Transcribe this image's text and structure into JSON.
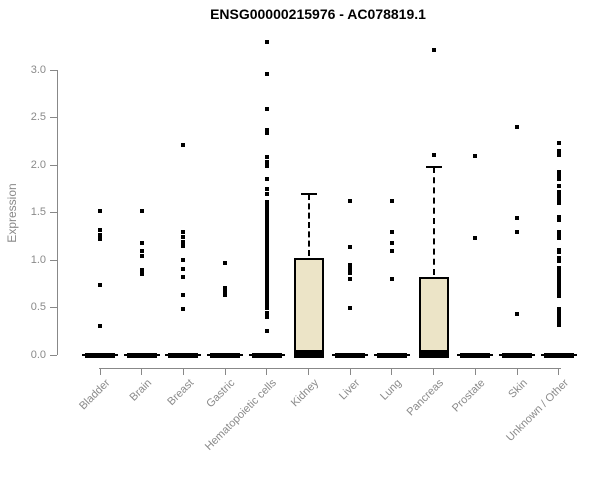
{
  "page": {
    "title": "ENSG00000215976 - AC078819.1"
  },
  "chart_data": {
    "type": "boxplot",
    "title": "ENSG00000215976 - AC078819.1",
    "xlabel": "",
    "ylabel": "Expression",
    "axis_range": [
      0.0,
      3.0
    ],
    "ytick_step": 0.5,
    "yticks": [
      "0.0",
      "0.5",
      "1.0",
      "1.5",
      "2.0",
      "2.5",
      "3.0"
    ],
    "ytick_values": [
      0.0,
      0.5,
      1.0,
      1.5,
      2.0,
      2.5,
      3.0
    ],
    "grid": false,
    "legend": "none",
    "colors": {
      "box_fill": "#ece4c7",
      "box_border": "#000000",
      "point": "#000000",
      "axis": "#888888",
      "tick_label": "#8a8a8a",
      "title": "#000000",
      "background": "#ffffff"
    },
    "categories": [
      "Bladder",
      "Brain",
      "Breast",
      "Gastric",
      "Hematopoietic cells",
      "Kidney",
      "Liver",
      "Lung",
      "Pancreas",
      "Prostate",
      "Skin",
      "Unknown / Other"
    ],
    "series": [
      {
        "name": "Bladder",
        "box": {
          "q1": 0,
          "median": 0,
          "q3": 0,
          "whisker_low": 0,
          "whisker_high": 0
        },
        "points": [
          1.52,
          1.32,
          1.26,
          1.22,
          0.74,
          0.31
        ]
      },
      {
        "name": "Brain",
        "box": {
          "q1": 0,
          "median": 0,
          "q3": 0,
          "whisker_low": 0,
          "whisker_high": 0
        },
        "points": [
          1.52,
          1.18,
          1.09,
          1.04,
          0.9,
          0.85
        ]
      },
      {
        "name": "Breast",
        "box": {
          "q1": 0,
          "median": 0,
          "q3": 0,
          "whisker_low": 0,
          "whisker_high": 0
        },
        "points": [
          2.21,
          1.3,
          1.24,
          1.19,
          1.15,
          1.0,
          0.91,
          0.82,
          0.63,
          0.48
        ]
      },
      {
        "name": "Gastric",
        "box": {
          "q1": 0,
          "median": 0,
          "q3": 0,
          "whisker_low": 0,
          "whisker_high": 0
        },
        "points": [
          0.97,
          0.71,
          0.67,
          0.63
        ]
      },
      {
        "name": "Hematopoietic cells",
        "box": {
          "q1": 0,
          "median": 0,
          "q3": 0,
          "whisker_low": 0,
          "whisker_high": 0
        },
        "points": [
          3.29,
          2.96,
          2.59,
          2.37,
          2.34,
          2.08,
          2.03,
          1.99,
          1.85,
          1.75,
          1.7,
          1.61,
          1.57,
          1.53,
          1.49,
          1.45,
          1.41,
          1.37,
          1.33,
          1.29,
          1.25,
          1.21,
          1.17,
          1.13,
          1.09,
          1.05,
          1.01,
          0.97,
          0.93,
          0.89,
          0.85,
          0.81,
          0.77,
          0.73,
          0.69,
          0.65,
          0.61,
          0.57,
          0.53,
          0.49,
          0.44,
          0.4,
          0.25
        ]
      },
      {
        "name": "Kidney",
        "box": {
          "q1": 0,
          "median": 0,
          "q3": 1.02,
          "whisker_low": 0,
          "whisker_high": 1.7
        },
        "points": []
      },
      {
        "name": "Liver",
        "box": {
          "q1": 0,
          "median": 0,
          "q3": 0,
          "whisker_low": 0,
          "whisker_high": 0
        },
        "points": [
          1.62,
          1.14,
          0.95,
          0.91,
          0.86,
          0.8,
          0.49
        ]
      },
      {
        "name": "Lung",
        "box": {
          "q1": 0,
          "median": 0,
          "q3": 0,
          "whisker_low": 0,
          "whisker_high": 0
        },
        "points": [
          1.62,
          1.29,
          1.18,
          1.09,
          0.8
        ]
      },
      {
        "name": "Pancreas",
        "box": {
          "q1": 0,
          "median": 0,
          "q3": 0.82,
          "whisker_low": 0,
          "whisker_high": 1.98
        },
        "points": [
          3.21,
          2.11
        ]
      },
      {
        "name": "Prostate",
        "box": {
          "q1": 0,
          "median": 0,
          "q3": 0,
          "whisker_low": 0,
          "whisker_high": 0
        },
        "points": [
          2.09,
          1.23
        ]
      },
      {
        "name": "Skin",
        "box": {
          "q1": 0,
          "median": 0,
          "q3": 0,
          "whisker_low": 0,
          "whisker_high": 0
        },
        "points": [
          2.4,
          1.44,
          1.29,
          0.43
        ]
      },
      {
        "name": "Unknown / Other",
        "box": {
          "q1": 0,
          "median": 0,
          "q3": 0,
          "whisker_low": 0,
          "whisker_high": 0
        },
        "points": [
          2.23,
          2.15,
          2.11,
          1.93,
          1.89,
          1.85,
          1.78,
          1.72,
          1.68,
          1.64,
          1.6,
          1.45,
          1.42,
          1.3,
          1.26,
          1.23,
          1.11,
          1.08,
          1.02,
          0.99,
          0.92,
          0.89,
          0.85,
          0.82,
          0.78,
          0.74,
          0.7,
          0.66,
          0.62,
          0.48,
          0.44,
          0.4,
          0.36,
          0.32
        ]
      }
    ]
  }
}
